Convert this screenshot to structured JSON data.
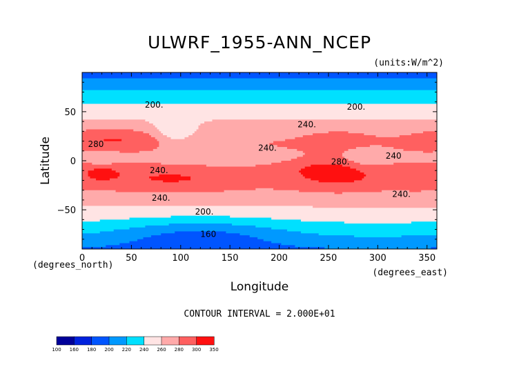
{
  "chart_data": {
    "type": "heatmap",
    "title": "ULWRF_1955-ANN_NCEP",
    "units": "(units:W/m^2)",
    "xlabel": "Longitude",
    "ylabel": "Latitude",
    "x_unit_label": "(degrees_east)",
    "y_unit_label": "(degrees_north)",
    "xlim": [
      0,
      360
    ],
    "ylim": [
      -90,
      90
    ],
    "x_ticks": [
      0,
      50,
      100,
      150,
      200,
      250,
      300,
      350
    ],
    "x_tick_labels": [
      "0",
      "50",
      "100",
      "150",
      "200",
      "250",
      "300",
      "350"
    ],
    "y_ticks": [
      50,
      0,
      -50
    ],
    "y_tick_labels": [
      "50",
      "0",
      "−50"
    ],
    "contour_interval_text": "CONTOUR INTERVAL = 2.000E+01",
    "colorbar": {
      "levels": [
        100,
        160,
        180,
        200,
        220,
        240,
        260,
        280,
        300,
        350
      ],
      "level_labels": [
        "100",
        "160",
        "180",
        "200",
        "220",
        "240",
        "260",
        "280",
        "300",
        "350"
      ],
      "colors": [
        "#000099",
        "#0022dd",
        "#0055ff",
        "#0099ff",
        "#00e0ff",
        "#ffe4e4",
        "#ffaaaa",
        "#ff6060",
        "#ff1010"
      ]
    },
    "contour_labels": [
      {
        "text": "200.",
        "lon": 73,
        "lat": 57
      },
      {
        "text": "200.",
        "lon": 278,
        "lat": 55
      },
      {
        "text": "240.",
        "lon": 228,
        "lat": 37
      },
      {
        "text": "280",
        "lon": 14,
        "lat": 17
      },
      {
        "text": "240.",
        "lon": 188,
        "lat": 13
      },
      {
        "text": "240",
        "lon": 316,
        "lat": 5
      },
      {
        "text": "280.",
        "lon": 262,
        "lat": -1
      },
      {
        "text": "240.",
        "lon": 78,
        "lat": -10
      },
      {
        "text": "240.",
        "lon": 80,
        "lat": -38
      },
      {
        "text": "240.",
        "lon": 324,
        "lat": -34
      },
      {
        "text": "200.",
        "lon": 124,
        "lat": -52
      },
      {
        "text": "160",
        "lon": 128,
        "lat": -75
      }
    ],
    "grid": false
  }
}
